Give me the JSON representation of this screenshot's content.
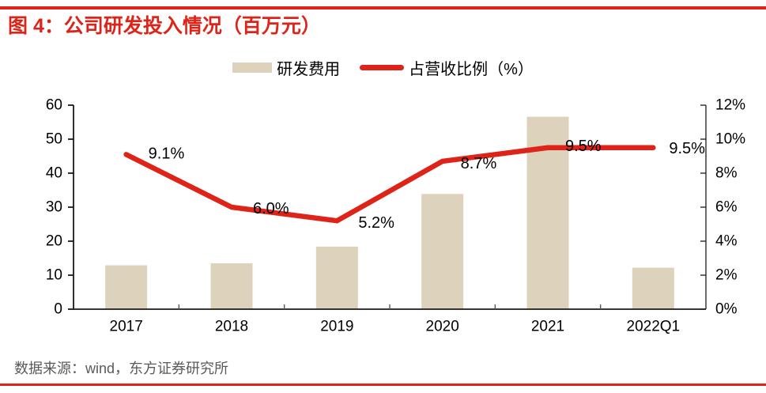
{
  "page": {
    "background": "#FFFFFF",
    "accent_red": "#DE2318",
    "text_black": "#000000",
    "footer_gray": "#5A5A5A"
  },
  "header": {
    "title": "图 4：公司研发投入情况（百万元）"
  },
  "legend": {
    "items": [
      {
        "label": "研发费用",
        "marker": "bar-swatch",
        "color": "#DDD3BC"
      },
      {
        "label": "占营收比例（%）",
        "marker": "line-swatch",
        "color": "#DE2318"
      }
    ]
  },
  "chart_data": {
    "type": "bar+line",
    "title": "公司研发投入情况（百万元）",
    "categories": [
      "2017",
      "2018",
      "2019",
      "2020",
      "2021",
      "2022Q1"
    ],
    "series": [
      {
        "name": "研发费用",
        "type": "bar",
        "axis": "left",
        "color": "#DDD3BC",
        "values": [
          12.9,
          13.5,
          18.4,
          33.9,
          56.6,
          12.2
        ]
      },
      {
        "name": "占营收比例（%）",
        "type": "line",
        "axis": "right",
        "color": "#DE2318",
        "values": [
          9.1,
          6.0,
          5.2,
          8.7,
          9.5,
          9.5
        ],
        "point_labels": [
          "9.1%",
          "6.0%",
          "5.2%",
          "8.7%",
          "9.5%",
          "9.5%"
        ]
      }
    ],
    "left_axis": {
      "min": 0,
      "max": 60,
      "ticks": [
        "0",
        "10",
        "20",
        "30",
        "40",
        "50",
        "60"
      ]
    },
    "right_axis": {
      "min": 0,
      "max": 12,
      "ticks": [
        "0%",
        "2%",
        "4%",
        "6%",
        "8%",
        "10%",
        "12%"
      ]
    },
    "grid": "off",
    "legend_position": "top-center"
  },
  "footer": {
    "source": "数据来源：wind，东方证券研究所"
  }
}
